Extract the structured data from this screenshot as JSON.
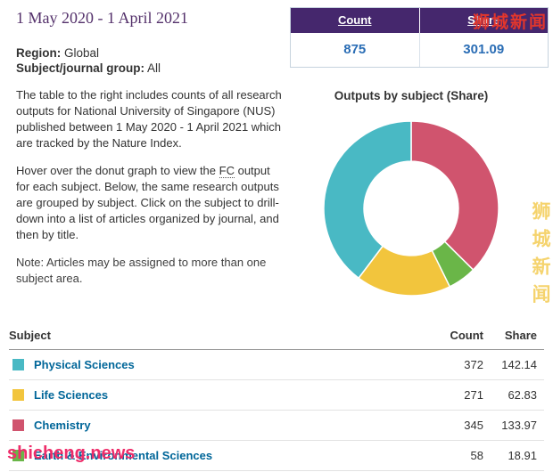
{
  "header": {
    "date_range": "1 May 2020 - 1 April 2021"
  },
  "filters": {
    "region_label": "Region:",
    "region_value": "Global",
    "group_label": "Subject/journal group:",
    "group_value": "All"
  },
  "text": {
    "p1": "The table to the right includes counts of all research outputs for National University of Singapore (NUS) published between 1 May 2020 - 1 April 2021 which are tracked by the Nature Index.",
    "p2_before": "Hover over the donut graph to view the ",
    "p2_abbr": "FC",
    "p2_after": " output for each subject. Below, the same research outputs are grouped by subject. Click on the subject to drill-down into a list of articles organized by journal, and then by title.",
    "note": "Note: Articles may be assigned to more than one subject area."
  },
  "summary": {
    "count_label": "Count",
    "share_label": "Share",
    "count_value": "875",
    "share_value": "301.09"
  },
  "chart_data": {
    "type": "donut",
    "title": "Outputs by subject (Share)",
    "metric": "Share",
    "start_angle_deg": -90,
    "direction": "clockwise",
    "inner_radius_ratio": 0.54,
    "segments": [
      {
        "label": "Chemistry",
        "value": 133.97,
        "color": "#d0546e"
      },
      {
        "label": "Earth & Environmental Sciences",
        "value": 18.91,
        "color": "#6ab648"
      },
      {
        "label": "Life Sciences",
        "value": 62.83,
        "color": "#f2c53d"
      },
      {
        "label": "Physical Sciences",
        "value": 142.14,
        "color": "#49b9c4"
      }
    ]
  },
  "subject_table": {
    "headers": [
      "Subject",
      "Count",
      "Share"
    ],
    "rows": [
      {
        "subject": "Physical Sciences",
        "count": "372",
        "share": "142.14",
        "color": "#49b9c4"
      },
      {
        "subject": "Life Sciences",
        "count": "271",
        "share": "62.83",
        "color": "#f2c53d"
      },
      {
        "subject": "Chemistry",
        "count": "345",
        "share": "133.97",
        "color": "#d0546e"
      },
      {
        "subject": "Earth & Environmental Sciences",
        "count": "58",
        "share": "18.91",
        "color": "#6ab648"
      }
    ]
  },
  "watermarks": {
    "top_right": "狮城新闻",
    "bottom_left": "shicheng.news",
    "side_vertical": "狮城新闻"
  },
  "colors": {
    "header_purple": "#45276d",
    "value_blue": "#2a6db5",
    "link_blue": "#006699"
  }
}
